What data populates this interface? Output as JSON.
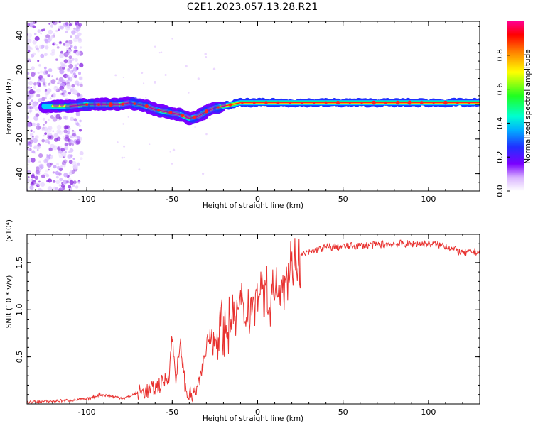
{
  "figure": {
    "title": "C2E1.2023.057.13.28.R21"
  },
  "chart_data": [
    {
      "type": "heatmap",
      "name": "spectrogram",
      "xlabel": "Height of straight line (km)",
      "ylabel": "Frequency (Hz)",
      "xlim": [
        -135,
        130
      ],
      "ylim": [
        -50,
        48
      ],
      "xticks": [
        -100,
        -50,
        0,
        50,
        100
      ],
      "yticks": [
        -40,
        -20,
        0,
        20,
        40
      ],
      "ridge": {
        "x": [
          -120,
          -110,
          -100,
          -90,
          -85,
          -80,
          -75,
          -70,
          -65,
          -60,
          -55,
          -50,
          -45,
          -40,
          -35,
          -30,
          -25,
          -20,
          -15,
          -10,
          -5,
          0,
          5,
          10,
          20,
          40,
          60,
          80,
          100,
          130
        ],
        "freq": [
          -1,
          -1,
          0,
          0,
          0,
          0,
          1,
          0,
          -1,
          -3,
          -4,
          -5,
          -6,
          -8,
          -7,
          -4,
          -2,
          -1,
          0,
          1,
          1,
          1,
          1,
          1,
          1,
          1,
          1,
          1,
          1,
          1
        ]
      },
      "colorbar": {
        "label": "Normalized spectral amplitude",
        "range": [
          0,
          1
        ],
        "ticks": [
          "0.0",
          "0.2",
          "0.4",
          "0.6",
          "0.8"
        ],
        "tick_values": [
          0,
          0.2,
          0.4,
          0.6,
          0.8
        ]
      }
    },
    {
      "type": "line",
      "name": "snr",
      "xlabel": "Height of straight line (km)",
      "ylabel": "SNR (10 * v/v)",
      "multiplier": "(x10⁴)",
      "xlim": [
        -135,
        130
      ],
      "ylim": [
        0,
        1.8
      ],
      "xticks": [
        -100,
        -50,
        0,
        50,
        100
      ],
      "yticks": [
        0.5,
        1.0,
        1.5
      ],
      "ytick_labels": [
        "0.5",
        "1.0",
        "1.5"
      ],
      "color": "#e8312f",
      "x": [
        -135,
        -120,
        -100,
        -92,
        -85,
        -78,
        -70,
        -62,
        -56,
        -52,
        -50,
        -48,
        -45,
        -42,
        -38,
        -34,
        -31,
        -28,
        -26,
        -22,
        -18,
        -14,
        -10,
        -6,
        -2,
        2,
        6,
        10,
        14,
        18,
        22,
        26,
        32,
        40,
        50,
        60,
        70,
        80,
        90,
        100,
        110,
        115,
        120,
        125,
        130
      ],
      "y": [
        0.02,
        0.03,
        0.05,
        0.1,
        0.08,
        0.06,
        0.12,
        0.15,
        0.22,
        0.3,
        0.72,
        0.28,
        0.62,
        0.12,
        0.08,
        0.22,
        0.5,
        0.75,
        0.65,
        0.85,
        0.8,
        0.95,
        1.02,
        1.0,
        1.12,
        1.28,
        1.15,
        1.2,
        1.3,
        1.42,
        1.5,
        1.58,
        1.62,
        1.66,
        1.67,
        1.68,
        1.69,
        1.7,
        1.7,
        1.7,
        1.68,
        1.64,
        1.6,
        1.61,
        1.62
      ]
    }
  ]
}
